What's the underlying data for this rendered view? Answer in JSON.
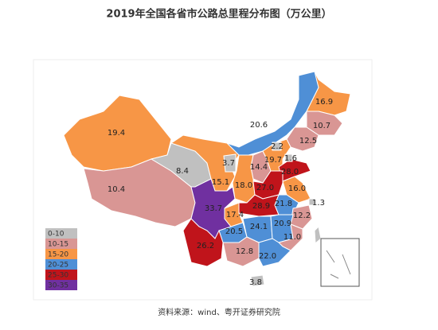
{
  "title": "2019年全国各省市公路总里程分布图（万公里）",
  "source": "资料来源：wind、粤开证券研究院",
  "legend": [
    {
      "label": "0-10",
      "color": "#c0c0c0"
    },
    {
      "label": "10-15",
      "color": "#d99694"
    },
    {
      "label": "15-20",
      "color": "#f79646"
    },
    {
      "label": "20-25",
      "color": "#4f8fd6"
    },
    {
      "label": "25-30",
      "color": "#c0141b"
    },
    {
      "label": "30-35",
      "color": "#7030a0"
    }
  ],
  "regions": [
    {
      "value": "16.9",
      "color": "#f79646"
    },
    {
      "value": "10.7",
      "color": "#d99694"
    },
    {
      "value": "12.5",
      "color": "#d99694"
    },
    {
      "value": "20.6",
      "color": "#4f8fd6"
    },
    {
      "value": "19.4",
      "color": "#f79646"
    },
    {
      "value": "10.4",
      "color": "#d99694"
    },
    {
      "value": "8.4",
      "color": "#c0c0c0"
    },
    {
      "value": "3.7",
      "color": "#c0c0c0"
    },
    {
      "value": "15.1",
      "color": "#f79646"
    },
    {
      "value": "18.0",
      "color": "#f79646"
    },
    {
      "value": "14.4",
      "color": "#d99694"
    },
    {
      "value": "19.7",
      "color": "#f79646"
    },
    {
      "value": "2.2",
      "color": "#c0c0c0"
    },
    {
      "value": "1.6",
      "color": "#c0c0c0"
    },
    {
      "value": "28.0",
      "color": "#c0141b"
    },
    {
      "value": "27.0",
      "color": "#c0141b"
    },
    {
      "value": "16.0",
      "color": "#f79646"
    },
    {
      "value": "1.3",
      "color": "#c0c0c0"
    },
    {
      "value": "33.7",
      "color": "#7030a0"
    },
    {
      "value": "17.4",
      "color": "#f79646"
    },
    {
      "value": "28.9",
      "color": "#c0141b"
    },
    {
      "value": "21.8",
      "color": "#4f8fd6"
    },
    {
      "value": "12.2",
      "color": "#d99694"
    },
    {
      "value": "24.1",
      "color": "#4f8fd6"
    },
    {
      "value": "20.9",
      "color": "#4f8fd6"
    },
    {
      "value": "11.0",
      "color": "#d99694"
    },
    {
      "value": "20.5",
      "color": "#4f8fd6"
    },
    {
      "value": "26.2",
      "color": "#c0141b"
    },
    {
      "value": "12.8",
      "color": "#d99694"
    },
    {
      "value": "22.0",
      "color": "#4f8fd6"
    },
    {
      "value": "3.8",
      "color": "#c0c0c0"
    }
  ]
}
